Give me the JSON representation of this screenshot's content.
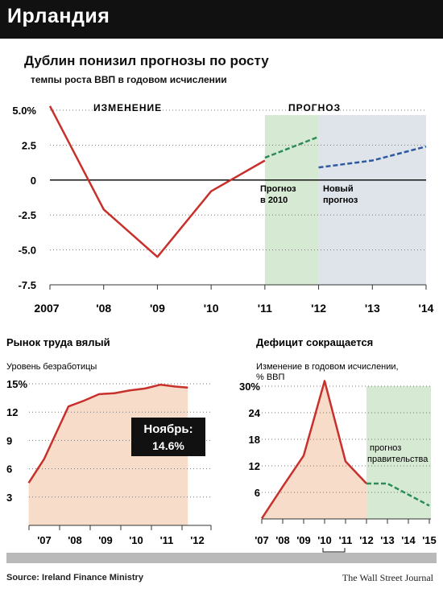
{
  "header": {
    "title": "Ирландия"
  },
  "title": "Дублин понизил прогнозы по росту",
  "subtitle": "темпы роста ВВП в годовом исчислении",
  "footer": {
    "source": "Source: Ireland Finance Ministry",
    "publisher": "The Wall Street Journal"
  },
  "colors": {
    "actual": "#c8302c",
    "forecast_2010": "#2e8b57",
    "new_forecast": "#2d5aa0",
    "green_band": "#d6ead3",
    "blue_band": "#dfe3ea",
    "area_fill": "#f6dcc9"
  },
  "chart_data": [
    {
      "id": "gdp",
      "type": "line",
      "section_labels": [
        "ИЗМЕНЕНИЕ",
        "ПРОГНОЗ"
      ],
      "x_ticks": [
        "2007",
        "'08",
        "'09",
        "'10",
        "'11",
        "'12",
        "'13",
        "'14"
      ],
      "y_ticks": [
        "5.0%",
        "2.5",
        "0",
        "-2.5",
        "-5.0",
        "-7.5"
      ],
      "ylim": [
        -7.5,
        5.0
      ],
      "series": [
        {
          "name": "",
          "x": [
            2007.0,
            2008.0,
            2009.0,
            2010.0,
            2011.0
          ],
          "values": [
            5.3,
            -2.1,
            -5.5,
            -0.8,
            1.4
          ]
        },
        {
          "name": "Прогноз в 2010",
          "x": [
            2011.0,
            2012.0
          ],
          "values": [
            1.6,
            3.1
          ]
        },
        {
          "name": "Новый прогноз",
          "x": [
            2012.0,
            2013.0,
            2014.0
          ],
          "values": [
            0.9,
            1.4,
            2.4
          ]
        }
      ],
      "annotations": [
        "Прогноз в 2010",
        "Новый прогноз"
      ]
    },
    {
      "id": "unemployment",
      "type": "area",
      "title": "Рынок труда вялый",
      "ylabel": "Уровень безработицы",
      "x_ticks": [
        "'07",
        "'08",
        "'09",
        "'10",
        "'11",
        "'12"
      ],
      "y_ticks": [
        "15%",
        "12",
        "9",
        "6",
        "3"
      ],
      "ylim": [
        0,
        15
      ],
      "x": [
        2006.7,
        2007.2,
        2008.0,
        2008.5,
        2009.0,
        2009.5,
        2010.0,
        2010.5,
        2011.0,
        2011.5,
        2011.9
      ],
      "values": [
        4.5,
        7.0,
        12.6,
        13.2,
        13.9,
        14.0,
        14.3,
        14.5,
        14.9,
        14.7,
        14.6
      ],
      "callout": {
        "label": "Ноябрь:",
        "value": "14.6%"
      }
    },
    {
      "id": "deficit",
      "type": "line",
      "title": "Дефицит сокращается",
      "ylabel": "Изменение в годовом исчислении, % ВВП",
      "x_ticks": [
        "'07",
        "'08",
        "'09",
        "'10",
        "'11",
        "'12",
        "'13",
        "'14",
        "'15"
      ],
      "y_ticks": [
        "30%",
        "24",
        "18",
        "12",
        "6"
      ],
      "ylim": [
        0,
        30
      ],
      "series": [
        {
          "name": "",
          "x": [
            2007,
            2008,
            2009,
            2010,
            2011,
            2012
          ],
          "values": [
            0.1,
            7.3,
            14.3,
            31.2,
            13.0,
            8.0
          ]
        },
        {
          "name": "",
          "x": [
            2012,
            2013,
            2014,
            2015
          ],
          "values": [
            8.0,
            8.0,
            5.5,
            3.0
          ]
        }
      ],
      "annotation": "прогноз правительства"
    }
  ]
}
